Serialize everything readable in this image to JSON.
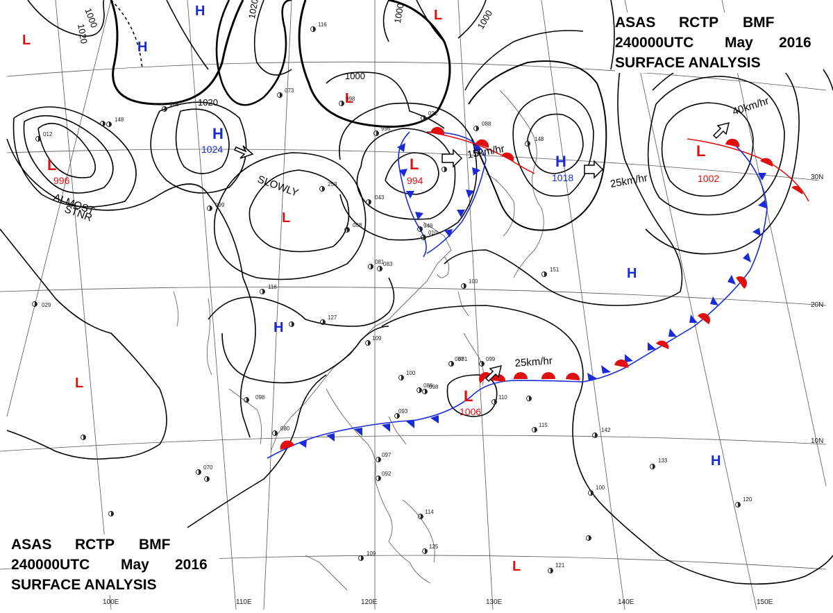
{
  "title": {
    "line1": [
      "ASAS",
      "RCTP",
      "BMF"
    ],
    "line2": [
      "240000UTC",
      "May",
      "2016"
    ],
    "line3": "SURFACE ANALYSIS"
  },
  "colors": {
    "high": "#1a2bd6",
    "low": "#e01010",
    "cold_front": "#1a2bd6",
    "warm_front": "#e01010",
    "isobar": "#000000",
    "grid": "#555555"
  },
  "lat_labels": [
    "30N",
    "20N",
    "10N"
  ],
  "lon_labels": [
    "100E",
    "110E",
    "120E",
    "130E",
    "140E",
    "150E"
  ],
  "isobar_labels": [
    "1020",
    "1000",
    "1020",
    "1000",
    "1000",
    "1020",
    "1000"
  ],
  "pressure_centers": [
    {
      "type": "L",
      "value": "996"
    },
    {
      "type": "H",
      "value": "1024"
    },
    {
      "type": "L",
      "value": "994"
    },
    {
      "type": "H",
      "value": "1018"
    },
    {
      "type": "L",
      "value": "1002"
    },
    {
      "type": "L",
      "value": "1006"
    },
    {
      "type": "H",
      "value": ""
    },
    {
      "type": "H",
      "value": ""
    },
    {
      "type": "H",
      "value": ""
    },
    {
      "type": "H",
      "value": ""
    },
    {
      "type": "L",
      "value": ""
    },
    {
      "type": "L",
      "value": ""
    },
    {
      "type": "L",
      "value": ""
    },
    {
      "type": "L",
      "value": ""
    },
    {
      "type": "L",
      "value": ""
    }
  ],
  "motion_labels": [
    "ALMOST",
    "STNR",
    "SLOWLY",
    "15km/hr",
    "25km/hr",
    "40km/hr",
    "25km/hr"
  ],
  "station_numbers": [
    "029",
    "098",
    "116",
    "099",
    "058",
    "083",
    "100",
    "127",
    "109",
    "081",
    "100",
    "098",
    "087",
    "099",
    "086",
    "093",
    "110",
    "115",
    "097",
    "092",
    "114",
    "125",
    "109",
    "080",
    "070",
    "142",
    "133",
    "120",
    "100",
    "121",
    "151",
    "148",
    "088",
    "022",
    "996",
    "998",
    "253",
    "073",
    "012",
    "148",
    "188",
    "116",
    "043",
    "010",
    "949",
    "081"
  ]
}
